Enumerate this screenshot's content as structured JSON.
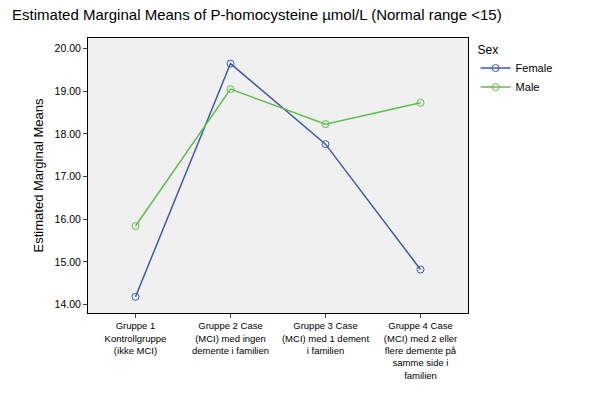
{
  "chart_data": {
    "type": "line",
    "title": "Estimated Marginal Means of P-homocysteine µmol/L (Normal range <15)",
    "y_label": "Estimated Marginal Means",
    "legend_title": "Sex",
    "legend": "right",
    "marker": "circle-open",
    "grid": false,
    "categories": [
      "Gruppe 1 Kontrollgruppe (ikke MCI)",
      "Gruppe 2 Case (MCI) med ingen demente i familien",
      "Gruppe 3 Case (MCI) med 1 dement i familien",
      "Gruppe 4 Case (MCI) med 2 eller flere demente på samme side i familien"
    ],
    "series": [
      {
        "name": "Female",
        "color": "#3d5ba9",
        "values": [
          14.18,
          19.65,
          17.76,
          14.82
        ]
      },
      {
        "name": "Male",
        "color": "#5cbf4c",
        "values": [
          15.84,
          19.05,
          18.23,
          18.73
        ]
      }
    ],
    "ylim": [
      13.8,
      20.25
    ],
    "yticks": [
      {
        "value": 14,
        "label": "14.00"
      },
      {
        "value": 15,
        "label": "15.00"
      },
      {
        "value": 16,
        "label": "16.00"
      },
      {
        "value": 17,
        "label": "17.00"
      },
      {
        "value": 18,
        "label": "18.00"
      },
      {
        "value": 19,
        "label": "19.00"
      },
      {
        "value": 20,
        "label": "20.00"
      }
    ]
  }
}
